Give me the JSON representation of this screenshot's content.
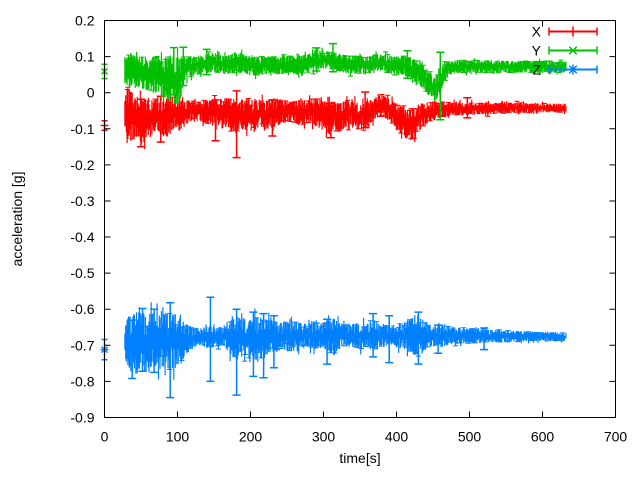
{
  "figure": {
    "background": "#ffffff",
    "border_color": "#000000",
    "text_color": "#000000"
  },
  "chart_data": {
    "type": "errorbars",
    "title": "",
    "xlabel": "time[s]",
    "ylabel": "acceleration [g]",
    "xlim": [
      0,
      700
    ],
    "ylim": [
      -0.9,
      0.2
    ],
    "xticks": [
      "0",
      "100",
      "200",
      "300",
      "400",
      "500",
      "600",
      "700"
    ],
    "yticks": [
      "0.2",
      "0.1",
      "0",
      "-0.1",
      "-0.2",
      "-0.3",
      "-0.4",
      "-0.5",
      "-0.6",
      "-0.7",
      "-0.8",
      "-0.9"
    ],
    "grid": false,
    "legend": {
      "position": "top-right",
      "entries": [
        {
          "label": "X",
          "color": "#ff0000",
          "marker": "plus"
        },
        {
          "label": "Y",
          "color": "#00c000",
          "marker": "cross"
        },
        {
          "label": "Z",
          "color": "#0080ff",
          "marker": "star"
        }
      ]
    },
    "series": [
      {
        "name": "X",
        "color": "#ff0000",
        "marker": "plus",
        "seed": 42,
        "start_point": {
          "t": 0,
          "y": -0.091,
          "err": 0.013
        },
        "envelope": [
          [
            28,
            -0.1,
            -0.01
          ],
          [
            32,
            -0.13,
            0.015
          ],
          [
            38,
            -0.135,
            0.0
          ],
          [
            45,
            -0.12,
            -0.01
          ],
          [
            52,
            -0.145,
            -0.015
          ],
          [
            58,
            -0.135,
            -0.01
          ],
          [
            65,
            -0.115,
            -0.02
          ],
          [
            72,
            -0.1,
            -0.015
          ],
          [
            80,
            -0.125,
            -0.02
          ],
          [
            88,
            -0.12,
            -0.015
          ],
          [
            95,
            -0.1,
            -0.01
          ],
          [
            103,
            -0.09,
            -0.02
          ],
          [
            112,
            -0.085,
            -0.02
          ],
          [
            125,
            -0.08,
            -0.025
          ],
          [
            140,
            -0.085,
            -0.02
          ],
          [
            152,
            -0.095,
            -0.02
          ],
          [
            163,
            -0.1,
            -0.015
          ],
          [
            172,
            -0.105,
            -0.015
          ],
          [
            179,
            -0.115,
            -0.01
          ],
          [
            186,
            -0.1,
            -0.02
          ],
          [
            195,
            -0.105,
            -0.015
          ],
          [
            205,
            -0.11,
            -0.02
          ],
          [
            213,
            -0.09,
            -0.02
          ],
          [
            222,
            -0.105,
            -0.02
          ],
          [
            232,
            -0.095,
            -0.015
          ],
          [
            243,
            -0.085,
            -0.02
          ],
          [
            255,
            -0.08,
            -0.025
          ],
          [
            266,
            -0.09,
            -0.02
          ],
          [
            278,
            -0.085,
            -0.02
          ],
          [
            290,
            -0.09,
            -0.015
          ],
          [
            298,
            -0.105,
            -0.02
          ],
          [
            308,
            -0.115,
            -0.03
          ],
          [
            315,
            -0.1,
            -0.025
          ],
          [
            322,
            -0.11,
            -0.03
          ],
          [
            330,
            -0.095,
            -0.02
          ],
          [
            340,
            -0.09,
            -0.02
          ],
          [
            348,
            -0.1,
            -0.03
          ],
          [
            356,
            -0.095,
            -0.025
          ],
          [
            365,
            -0.085,
            -0.02
          ],
          [
            372,
            -0.07,
            -0.01
          ],
          [
            380,
            -0.065,
            -0.005
          ],
          [
            388,
            -0.075,
            -0.015
          ],
          [
            396,
            -0.09,
            -0.025
          ],
          [
            404,
            -0.11,
            -0.035
          ],
          [
            412,
            -0.125,
            -0.045
          ],
          [
            420,
            -0.135,
            -0.05
          ],
          [
            428,
            -0.115,
            -0.04
          ],
          [
            436,
            -0.095,
            -0.03
          ],
          [
            445,
            -0.08,
            -0.028
          ],
          [
            455,
            -0.072,
            -0.025
          ],
          [
            468,
            -0.065,
            -0.025
          ],
          [
            485,
            -0.062,
            -0.026
          ],
          [
            510,
            -0.06,
            -0.027
          ],
          [
            540,
            -0.058,
            -0.028
          ],
          [
            575,
            -0.056,
            -0.029
          ],
          [
            605,
            -0.055,
            -0.03
          ],
          [
            632,
            -0.055,
            -0.03
          ]
        ],
        "spikes": [
          [
            50,
            -0.15,
            -0.018
          ],
          [
            77,
            -0.137,
            -0.01
          ],
          [
            152,
            -0.133,
            -0.02
          ],
          [
            181,
            -0.18,
            0.005
          ],
          [
            230,
            -0.12,
            -0.02
          ],
          [
            310,
            -0.125,
            -0.03
          ],
          [
            357,
            -0.097,
            0.002
          ],
          [
            422,
            -0.127,
            -0.045
          ],
          [
            497,
            -0.07,
            -0.014
          ]
        ]
      },
      {
        "name": "Y",
        "color": "#00c000",
        "marker": "cross",
        "seed": 1337,
        "start_point": {
          "t": 0,
          "y": 0.059,
          "err": 0.02
        },
        "envelope": [
          [
            28,
            0.025,
            0.1
          ],
          [
            35,
            0.015,
            0.108
          ],
          [
            42,
            0.02,
            0.105
          ],
          [
            50,
            0.012,
            0.102
          ],
          [
            58,
            0.008,
            0.1
          ],
          [
            66,
            0.0,
            0.1
          ],
          [
            74,
            -0.008,
            0.102
          ],
          [
            82,
            -0.015,
            0.1
          ],
          [
            90,
            -0.022,
            0.103
          ],
          [
            97,
            -0.03,
            0.1
          ],
          [
            103,
            -0.038,
            0.098
          ],
          [
            106,
            0.005,
            0.098
          ],
          [
            110,
            0.03,
            0.1
          ],
          [
            118,
            0.045,
            0.1
          ],
          [
            128,
            0.05,
            0.103
          ],
          [
            140,
            0.055,
            0.108
          ],
          [
            150,
            0.058,
            0.112
          ],
          [
            158,
            0.055,
            0.108
          ],
          [
            168,
            0.05,
            0.104
          ],
          [
            178,
            0.055,
            0.112
          ],
          [
            188,
            0.058,
            0.108
          ],
          [
            198,
            0.05,
            0.1
          ],
          [
            208,
            0.046,
            0.098
          ],
          [
            218,
            0.05,
            0.102
          ],
          [
            228,
            0.054,
            0.1
          ],
          [
            240,
            0.05,
            0.1
          ],
          [
            252,
            0.055,
            0.103
          ],
          [
            264,
            0.05,
            0.1
          ],
          [
            276,
            0.056,
            0.106
          ],
          [
            288,
            0.062,
            0.112
          ],
          [
            298,
            0.068,
            0.118
          ],
          [
            308,
            0.065,
            0.115
          ],
          [
            318,
            0.06,
            0.11
          ],
          [
            328,
            0.055,
            0.105
          ],
          [
            338,
            0.05,
            0.1
          ],
          [
            348,
            0.054,
            0.103
          ],
          [
            358,
            0.05,
            0.1
          ],
          [
            368,
            0.054,
            0.104
          ],
          [
            378,
            0.058,
            0.108
          ],
          [
            388,
            0.054,
            0.104
          ],
          [
            398,
            0.05,
            0.1
          ],
          [
            408,
            0.048,
            0.102
          ],
          [
            418,
            0.042,
            0.098
          ],
          [
            428,
            0.028,
            0.088
          ],
          [
            438,
            0.008,
            0.075
          ],
          [
            446,
            -0.012,
            0.058
          ],
          [
            452,
            -0.026,
            0.04
          ],
          [
            458,
            -0.01,
            0.06
          ],
          [
            464,
            0.025,
            0.08
          ],
          [
            472,
            0.048,
            0.088
          ],
          [
            482,
            0.054,
            0.09
          ],
          [
            500,
            0.055,
            0.09
          ],
          [
            530,
            0.055,
            0.089
          ],
          [
            560,
            0.056,
            0.088
          ],
          [
            595,
            0.055,
            0.088
          ],
          [
            632,
            0.056,
            0.088
          ]
        ],
        "spikes": [
          [
            95,
            -0.005,
            0.125
          ],
          [
            108,
            0.02,
            0.126
          ],
          [
            140,
            0.05,
            0.12
          ],
          [
            290,
            0.06,
            0.124
          ],
          [
            313,
            0.058,
            0.136
          ],
          [
            415,
            0.04,
            0.116
          ],
          [
            460,
            -0.075,
            0.112
          ]
        ]
      },
      {
        "name": "Z",
        "color": "#0080ff",
        "marker": "star",
        "seed": 2024,
        "start_point": {
          "t": 0,
          "y": -0.712,
          "err": 0.028
        },
        "envelope": [
          [
            28,
            -0.73,
            -0.645
          ],
          [
            33,
            -0.77,
            -0.62
          ],
          [
            40,
            -0.775,
            -0.612
          ],
          [
            48,
            -0.765,
            -0.605
          ],
          [
            56,
            -0.772,
            -0.61
          ],
          [
            64,
            -0.776,
            -0.614
          ],
          [
            72,
            -0.768,
            -0.602
          ],
          [
            80,
            -0.772,
            -0.606
          ],
          [
            88,
            -0.768,
            -0.61
          ],
          [
            96,
            -0.764,
            -0.612
          ],
          [
            104,
            -0.752,
            -0.624
          ],
          [
            112,
            -0.725,
            -0.642
          ],
          [
            122,
            -0.705,
            -0.65
          ],
          [
            132,
            -0.7,
            -0.652
          ],
          [
            142,
            -0.708,
            -0.646
          ],
          [
            152,
            -0.702,
            -0.65
          ],
          [
            162,
            -0.7,
            -0.648
          ],
          [
            170,
            -0.718,
            -0.632
          ],
          [
            179,
            -0.742,
            -0.617
          ],
          [
            188,
            -0.732,
            -0.624
          ],
          [
            198,
            -0.736,
            -0.626
          ],
          [
            208,
            -0.74,
            -0.621
          ],
          [
            218,
            -0.736,
            -0.625
          ],
          [
            228,
            -0.722,
            -0.63
          ],
          [
            238,
            -0.712,
            -0.638
          ],
          [
            248,
            -0.716,
            -0.635
          ],
          [
            258,
            -0.72,
            -0.631
          ],
          [
            268,
            -0.712,
            -0.638
          ],
          [
            278,
            -0.706,
            -0.641
          ],
          [
            288,
            -0.71,
            -0.636
          ],
          [
            298,
            -0.706,
            -0.64
          ],
          [
            308,
            -0.718,
            -0.631
          ],
          [
            314,
            -0.728,
            -0.626
          ],
          [
            320,
            -0.712,
            -0.635
          ],
          [
            330,
            -0.702,
            -0.644
          ],
          [
            340,
            -0.706,
            -0.641
          ],
          [
            350,
            -0.71,
            -0.636
          ],
          [
            360,
            -0.706,
            -0.64
          ],
          [
            370,
            -0.714,
            -0.631
          ],
          [
            380,
            -0.706,
            -0.64
          ],
          [
            390,
            -0.7,
            -0.645
          ],
          [
            400,
            -0.706,
            -0.641
          ],
          [
            410,
            -0.71,
            -0.636
          ],
          [
            420,
            -0.724,
            -0.626
          ],
          [
            430,
            -0.734,
            -0.616
          ],
          [
            440,
            -0.712,
            -0.636
          ],
          [
            450,
            -0.702,
            -0.645
          ],
          [
            460,
            -0.706,
            -0.641
          ],
          [
            470,
            -0.7,
            -0.646
          ],
          [
            482,
            -0.697,
            -0.65
          ],
          [
            500,
            -0.695,
            -0.652
          ],
          [
            520,
            -0.693,
            -0.655
          ],
          [
            540,
            -0.691,
            -0.658
          ],
          [
            562,
            -0.69,
            -0.66
          ],
          [
            584,
            -0.689,
            -0.662
          ],
          [
            606,
            -0.688,
            -0.664
          ],
          [
            632,
            -0.689,
            -0.666
          ]
        ],
        "spikes": [
          [
            38,
            -0.792,
            -0.63
          ],
          [
            52,
            -0.772,
            -0.598
          ],
          [
            68,
            -0.775,
            -0.6
          ],
          [
            90,
            -0.845,
            -0.582
          ],
          [
            145,
            -0.8,
            -0.567
          ],
          [
            181,
            -0.838,
            -0.6
          ],
          [
            204,
            -0.786,
            -0.608
          ],
          [
            218,
            -0.79,
            -0.612
          ],
          [
            232,
            -0.762,
            -0.618
          ],
          [
            305,
            -0.752,
            -0.628
          ],
          [
            368,
            -0.732,
            -0.612
          ],
          [
            390,
            -0.748,
            -0.618
          ],
          [
            430,
            -0.752,
            -0.608
          ],
          [
            457,
            -0.722,
            -0.644
          ],
          [
            520,
            -0.712,
            -0.652
          ]
        ]
      }
    ]
  }
}
